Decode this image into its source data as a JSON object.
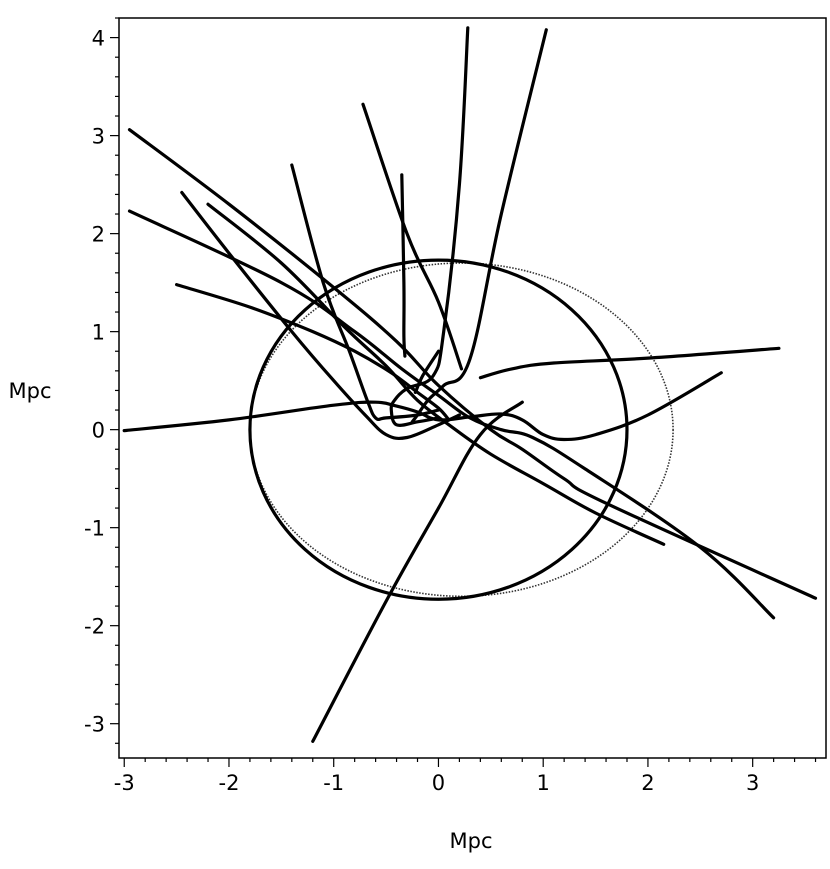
{
  "chart_data": {
    "type": "line",
    "xlabel": "Mpc",
    "ylabel": "Mpc",
    "xlim": [
      -3.05,
      3.7
    ],
    "ylim": [
      -3.35,
      4.2
    ],
    "xticks": [
      -3,
      -2,
      -1,
      0,
      1,
      2,
      3
    ],
    "yticks": [
      -3,
      -2,
      -1,
      0,
      1,
      2,
      3,
      4
    ],
    "xtick_labels": [
      "-3",
      "-2",
      "-1",
      "0",
      "1",
      "2",
      "3"
    ],
    "ytick_labels": [
      "-3",
      "-2",
      "-1",
      "0",
      "1",
      "2",
      "3",
      "4"
    ],
    "grid": false,
    "series": [
      {
        "style": "solid",
        "points": [
          [
            -3.0,
            -0.01
          ],
          [
            -2.0,
            0.1
          ],
          [
            -1.0,
            0.25
          ],
          [
            -0.6,
            0.28
          ],
          [
            -0.4,
            0.24
          ],
          [
            -0.2,
            0.18
          ],
          [
            0.0,
            0.1
          ],
          [
            0.3,
            0.13
          ],
          [
            0.6,
            0.16
          ],
          [
            0.8,
            0.1
          ],
          [
            1.0,
            -0.05
          ],
          [
            1.2,
            -0.1
          ],
          [
            1.5,
            -0.05
          ],
          [
            2.0,
            0.15
          ],
          [
            2.7,
            0.58
          ]
        ]
      },
      {
        "style": "solid",
        "points": [
          [
            0.4,
            0.53
          ],
          [
            0.7,
            0.62
          ],
          [
            1.1,
            0.68
          ],
          [
            2.0,
            0.73
          ],
          [
            3.25,
            0.83
          ]
        ]
      },
      {
        "style": "solid",
        "points": [
          [
            -2.95,
            3.06
          ],
          [
            -2.0,
            2.3
          ],
          [
            -1.0,
            1.45
          ],
          [
            -0.4,
            0.9
          ],
          [
            0.0,
            0.45
          ],
          [
            0.5,
            0.0
          ],
          [
            0.8,
            -0.2
          ],
          [
            1.2,
            -0.5
          ],
          [
            1.6,
            -0.75
          ],
          [
            3.6,
            -1.72
          ]
        ]
      },
      {
        "style": "solid",
        "points": [
          [
            -2.95,
            2.23
          ],
          [
            -1.5,
            1.5
          ],
          [
            -0.8,
            1.0
          ],
          [
            -0.35,
            0.62
          ],
          [
            0.0,
            0.35
          ],
          [
            0.3,
            0.12
          ],
          [
            0.6,
            0.0
          ],
          [
            0.9,
            -0.08
          ],
          [
            1.4,
            -0.4
          ],
          [
            2.5,
            -1.2
          ],
          [
            3.2,
            -1.92
          ]
        ]
      },
      {
        "style": "solid",
        "points": [
          [
            -2.45,
            2.42
          ],
          [
            -2.0,
            1.8
          ],
          [
            -1.4,
            1.0
          ],
          [
            -1.0,
            0.5
          ],
          [
            -0.7,
            0.15
          ],
          [
            -0.5,
            -0.05
          ],
          [
            -0.3,
            -0.08
          ],
          [
            0.0,
            0.05
          ],
          [
            0.2,
            0.15
          ]
        ]
      },
      {
        "style": "solid",
        "points": [
          [
            -2.2,
            2.3
          ],
          [
            -1.5,
            1.7
          ],
          [
            -0.9,
            1.05
          ],
          [
            -0.5,
            0.65
          ],
          [
            -0.2,
            0.3
          ],
          [
            0.1,
            0.05
          ],
          [
            0.5,
            -0.25
          ],
          [
            1.0,
            -0.55
          ],
          [
            1.5,
            -0.85
          ],
          [
            2.15,
            -1.17
          ]
        ]
      },
      {
        "style": "solid",
        "points": [
          [
            -2.5,
            1.48
          ],
          [
            -1.8,
            1.25
          ],
          [
            -1.2,
            1.0
          ],
          [
            -0.8,
            0.8
          ],
          [
            -0.45,
            0.58
          ],
          [
            -0.2,
            0.38
          ],
          [
            0.0,
            0.22
          ],
          [
            0.1,
            0.1
          ]
        ]
      },
      {
        "style": "solid",
        "points": [
          [
            -1.4,
            2.7
          ],
          [
            -1.1,
            1.5
          ],
          [
            -0.85,
            0.8
          ],
          [
            -0.68,
            0.3
          ],
          [
            -0.6,
            0.12
          ],
          [
            -0.5,
            0.12
          ],
          [
            -0.2,
            0.15
          ],
          [
            0.0,
            0.2
          ]
        ]
      },
      {
        "style": "solid",
        "points": [
          [
            -0.72,
            3.32
          ],
          [
            -0.3,
            2.0
          ],
          [
            0.0,
            1.3
          ],
          [
            0.22,
            0.62
          ]
        ]
      },
      {
        "style": "solid",
        "points": [
          [
            -0.35,
            2.6
          ],
          [
            -0.33,
            1.5
          ],
          [
            -0.33,
            0.95
          ],
          [
            -0.32,
            0.75
          ]
        ]
      },
      {
        "style": "solid",
        "points": [
          [
            0.28,
            4.1
          ],
          [
            0.2,
            2.5
          ],
          [
            0.05,
            1.0
          ],
          [
            -0.05,
            0.55
          ],
          [
            -0.3,
            0.42
          ],
          [
            -0.42,
            0.3
          ],
          [
            -0.45,
            0.2
          ],
          [
            -0.4,
            0.05
          ],
          [
            -0.2,
            0.08
          ],
          [
            0.0,
            0.12
          ]
        ]
      },
      {
        "style": "solid",
        "points": [
          [
            1.03,
            4.08
          ],
          [
            0.6,
            2.2
          ],
          [
            0.3,
            0.72
          ],
          [
            0.05,
            0.45
          ],
          [
            -0.1,
            0.3
          ],
          [
            -0.2,
            0.15
          ],
          [
            -0.25,
            0.08
          ]
        ]
      },
      {
        "style": "solid",
        "points": [
          [
            0.0,
            0.8
          ],
          [
            -0.15,
            0.55
          ],
          [
            -0.22,
            0.38
          ]
        ]
      },
      {
        "style": "solid",
        "points": [
          [
            -1.2,
            -3.18
          ],
          [
            -0.5,
            -1.75
          ],
          [
            0.0,
            -0.8
          ],
          [
            0.4,
            -0.05
          ],
          [
            0.8,
            0.28
          ]
        ]
      }
    ],
    "circles": [
      {
        "style": "solid",
        "center": [
          0.0,
          0.0
        ],
        "radius_x": 1.8,
        "radius_y": 1.73
      },
      {
        "style": "dotted",
        "center": [
          0.22,
          0.0
        ],
        "radius_x": 2.02,
        "radius_y": 1.7
      }
    ]
  }
}
